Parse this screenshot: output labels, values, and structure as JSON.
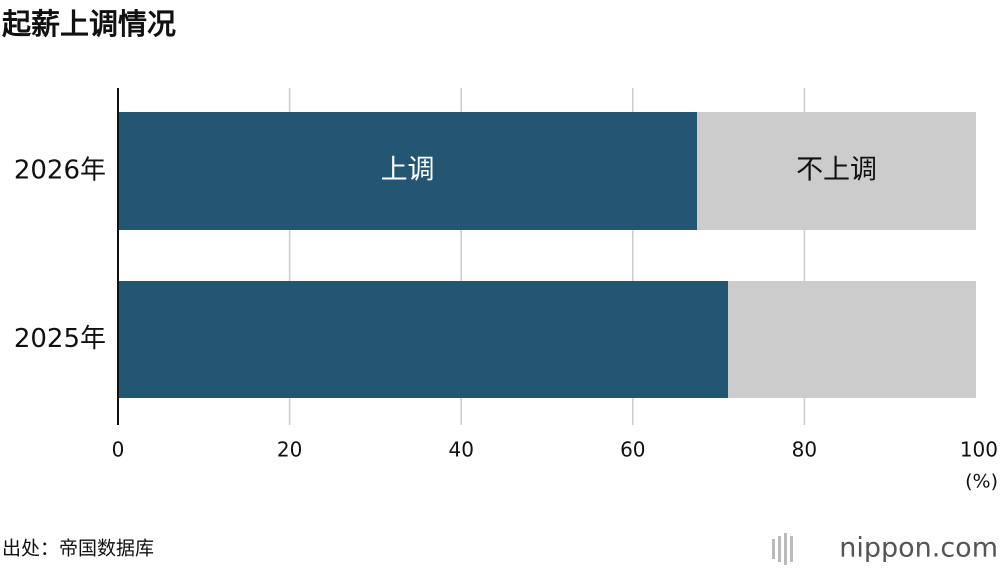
{
  "chart_data": {
    "type": "stacked-bar-horizontal",
    "title": "起薪上调情况",
    "categories": [
      "2026年",
      "2025年"
    ],
    "series": [
      {
        "name": "上调",
        "color": "#235673",
        "values": [
          67.5,
          71.1
        ]
      },
      {
        "name": "不上调",
        "color": "#cccccc",
        "values": [
          32.5,
          28.9
        ]
      }
    ],
    "xlim": [
      0,
      100
    ],
    "xticks": [
      0,
      20,
      40,
      60,
      80,
      100
    ],
    "x_label": "(%)",
    "grid": true,
    "source": "出处：帝国数据库",
    "logo": "nippon.com"
  }
}
